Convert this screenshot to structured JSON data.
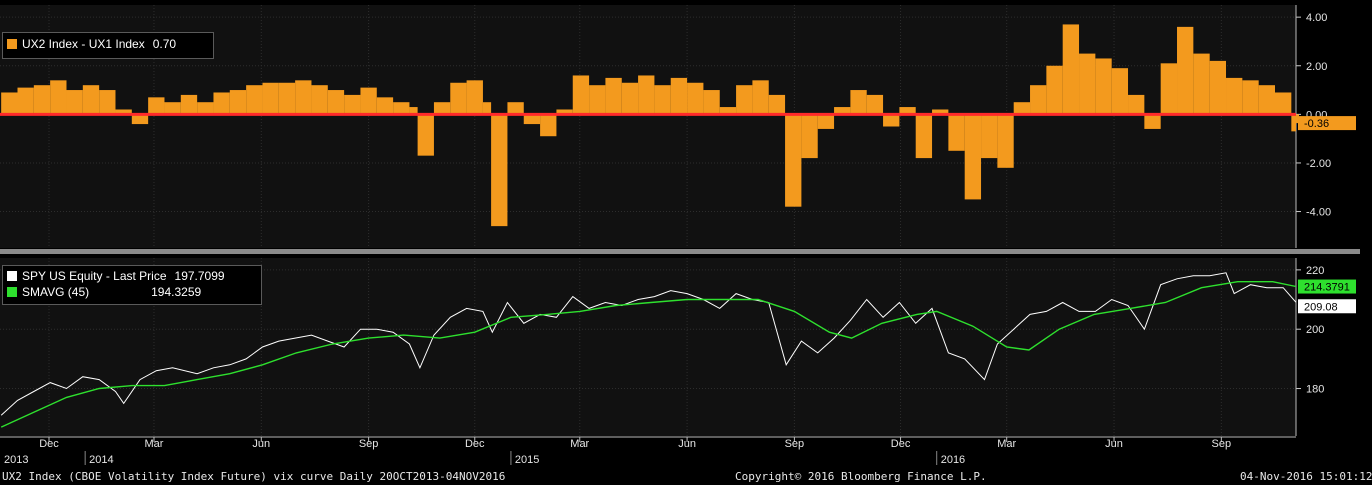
{
  "colors": {
    "bars": "#f39a1e",
    "zero_line": "#ff2a2a",
    "price": "#ffffff",
    "sma": "#2ee02e",
    "panel": "#111111",
    "grid": "#2d2d2d",
    "divider": "#8a8a8a"
  },
  "top_legend": {
    "label": "UX2 Index - UX1 Index",
    "value": "0.70"
  },
  "bottom_legend": {
    "price": {
      "label": "SPY US Equity - Last Price",
      "value": "197.7099"
    },
    "sma": {
      "label": "SMAVG (45)",
      "value": "194.3259"
    }
  },
  "badges": {
    "spread_last": "-0.36",
    "sma_last": "214.3791",
    "price_last": "209.08"
  },
  "footer": {
    "left": "UX2 Index (CBOE Volatility Index Future) vix curve  Daily 20OCT2013-04NOV2016",
    "center": "Copyright© 2016 Bloomberg Finance L.P.",
    "right": "04-Nov-2016 15:01:12"
  },
  "chart_data": [
    {
      "type": "bar",
      "series": [
        {
          "name": "UX2 Index - UX1 Index",
          "color": "#f39a1e",
          "points": [
            [
              "2013-10-21",
              0.9
            ],
            [
              "2013-11-04",
              1.1
            ],
            [
              "2013-11-18",
              1.2
            ],
            [
              "2013-12-02",
              1.4
            ],
            [
              "2013-12-16",
              1.0
            ],
            [
              "2013-12-30",
              1.2
            ],
            [
              "2014-01-13",
              1.0
            ],
            [
              "2014-01-27",
              0.2
            ],
            [
              "2014-02-10",
              -0.4
            ],
            [
              "2014-02-24",
              0.7
            ],
            [
              "2014-03-10",
              0.5
            ],
            [
              "2014-03-24",
              0.8
            ],
            [
              "2014-04-07",
              0.5
            ],
            [
              "2014-04-21",
              0.9
            ],
            [
              "2014-05-05",
              1.0
            ],
            [
              "2014-05-19",
              1.2
            ],
            [
              "2014-06-02",
              1.3
            ],
            [
              "2014-06-16",
              1.3
            ],
            [
              "2014-06-30",
              1.4
            ],
            [
              "2014-07-14",
              1.2
            ],
            [
              "2014-07-28",
              1.0
            ],
            [
              "2014-08-11",
              0.8
            ],
            [
              "2014-08-25",
              1.1
            ],
            [
              "2014-09-08",
              0.7
            ],
            [
              "2014-09-22",
              0.5
            ],
            [
              "2014-10-06",
              0.3
            ],
            [
              "2014-10-13",
              -1.7
            ],
            [
              "2014-10-27",
              0.5
            ],
            [
              "2014-11-10",
              1.3
            ],
            [
              "2014-11-24",
              1.4
            ],
            [
              "2014-12-08",
              0.5
            ],
            [
              "2014-12-15",
              -4.6
            ],
            [
              "2014-12-29",
              0.5
            ],
            [
              "2015-01-12",
              -0.4
            ],
            [
              "2015-01-26",
              -0.9
            ],
            [
              "2015-02-09",
              0.2
            ],
            [
              "2015-02-23",
              1.6
            ],
            [
              "2015-03-09",
              1.2
            ],
            [
              "2015-03-23",
              1.5
            ],
            [
              "2015-04-06",
              1.3
            ],
            [
              "2015-04-20",
              1.6
            ],
            [
              "2015-05-04",
              1.2
            ],
            [
              "2015-05-18",
              1.5
            ],
            [
              "2015-06-01",
              1.3
            ],
            [
              "2015-06-15",
              1.0
            ],
            [
              "2015-06-29",
              0.3
            ],
            [
              "2015-07-13",
              1.2
            ],
            [
              "2015-07-27",
              1.4
            ],
            [
              "2015-08-10",
              0.8
            ],
            [
              "2015-08-24",
              -3.8
            ],
            [
              "2015-09-07",
              -1.8
            ],
            [
              "2015-09-21",
              -0.6
            ],
            [
              "2015-10-05",
              0.3
            ],
            [
              "2015-10-19",
              1.0
            ],
            [
              "2015-11-02",
              0.8
            ],
            [
              "2015-11-16",
              -0.5
            ],
            [
              "2015-11-30",
              0.3
            ],
            [
              "2015-12-14",
              -1.8
            ],
            [
              "2015-12-28",
              0.2
            ],
            [
              "2016-01-11",
              -1.5
            ],
            [
              "2016-01-25",
              -3.5
            ],
            [
              "2016-02-08",
              -1.8
            ],
            [
              "2016-02-22",
              -2.2
            ],
            [
              "2016-03-07",
              0.5
            ],
            [
              "2016-03-21",
              1.2
            ],
            [
              "2016-04-04",
              2.0
            ],
            [
              "2016-04-18",
              3.7
            ],
            [
              "2016-05-02",
              2.5
            ],
            [
              "2016-05-16",
              2.3
            ],
            [
              "2016-05-30",
              1.9
            ],
            [
              "2016-06-13",
              0.8
            ],
            [
              "2016-06-27",
              -0.6
            ],
            [
              "2016-07-11",
              2.1
            ],
            [
              "2016-07-25",
              3.6
            ],
            [
              "2016-08-08",
              2.5
            ],
            [
              "2016-08-22",
              2.2
            ],
            [
              "2016-09-05",
              1.5
            ],
            [
              "2016-09-19",
              1.4
            ],
            [
              "2016-10-03",
              1.2
            ],
            [
              "2016-10-17",
              0.9
            ],
            [
              "2016-10-31",
              -0.7
            ],
            [
              "2016-11-04",
              -0.36
            ]
          ]
        }
      ],
      "x_start": "2013-10-20",
      "x_end": "2016-11-04",
      "ylim": [
        -5.5,
        4.5
      ],
      "yticks": [
        "4.00",
        "2.00",
        "0.00",
        "-2.00",
        "-4.00"
      ],
      "grid": true
    },
    {
      "type": "line",
      "series": [
        {
          "name": "SPY US Equity - Last Price",
          "color": "#ffffff",
          "points": [
            [
              "2013-10-21",
              171
            ],
            [
              "2013-11-04",
              176
            ],
            [
              "2013-11-18",
              179
            ],
            [
              "2013-12-02",
              182
            ],
            [
              "2013-12-16",
              180
            ],
            [
              "2013-12-30",
              184
            ],
            [
              "2014-01-13",
              183
            ],
            [
              "2014-01-27",
              179
            ],
            [
              "2014-02-03",
              175
            ],
            [
              "2014-02-17",
              183
            ],
            [
              "2014-03-03",
              186
            ],
            [
              "2014-03-17",
              187
            ],
            [
              "2014-04-07",
              185
            ],
            [
              "2014-04-21",
              187
            ],
            [
              "2014-05-05",
              188
            ],
            [
              "2014-05-19",
              190
            ],
            [
              "2014-06-02",
              194
            ],
            [
              "2014-06-16",
              196
            ],
            [
              "2014-06-30",
              197
            ],
            [
              "2014-07-14",
              198
            ],
            [
              "2014-07-28",
              196
            ],
            [
              "2014-08-11",
              194
            ],
            [
              "2014-08-25",
              200
            ],
            [
              "2014-09-08",
              200
            ],
            [
              "2014-09-22",
              199
            ],
            [
              "2014-10-06",
              195
            ],
            [
              "2014-10-15",
              187
            ],
            [
              "2014-10-27",
              198
            ],
            [
              "2014-11-10",
              204
            ],
            [
              "2014-11-24",
              207
            ],
            [
              "2014-12-08",
              206
            ],
            [
              "2014-12-16",
              199
            ],
            [
              "2014-12-29",
              209
            ],
            [
              "2015-01-12",
              202
            ],
            [
              "2015-01-26",
              205
            ],
            [
              "2015-02-09",
              204
            ],
            [
              "2015-02-23",
              211
            ],
            [
              "2015-03-09",
              207
            ],
            [
              "2015-03-23",
              209
            ],
            [
              "2015-04-06",
              208
            ],
            [
              "2015-04-20",
              210
            ],
            [
              "2015-05-04",
              211
            ],
            [
              "2015-05-18",
              213
            ],
            [
              "2015-06-01",
              212
            ],
            [
              "2015-06-15",
              210
            ],
            [
              "2015-06-29",
              207
            ],
            [
              "2015-07-13",
              212
            ],
            [
              "2015-07-27",
              210
            ],
            [
              "2015-08-10",
              209
            ],
            [
              "2015-08-25",
              188
            ],
            [
              "2015-09-07",
              196
            ],
            [
              "2015-09-21",
              192
            ],
            [
              "2015-10-05",
              197
            ],
            [
              "2015-10-19",
              203
            ],
            [
              "2015-11-02",
              210
            ],
            [
              "2015-11-16",
              204
            ],
            [
              "2015-11-30",
              209
            ],
            [
              "2015-12-14",
              202
            ],
            [
              "2015-12-28",
              207
            ],
            [
              "2016-01-11",
              192
            ],
            [
              "2016-01-25",
              190
            ],
            [
              "2016-02-11",
              183
            ],
            [
              "2016-02-22",
              195
            ],
            [
              "2016-03-07",
              200
            ],
            [
              "2016-03-21",
              205
            ],
            [
              "2016-04-04",
              206
            ],
            [
              "2016-04-18",
              209
            ],
            [
              "2016-05-02",
              206
            ],
            [
              "2016-05-16",
              206
            ],
            [
              "2016-05-30",
              210
            ],
            [
              "2016-06-13",
              208
            ],
            [
              "2016-06-27",
              200
            ],
            [
              "2016-07-11",
              215
            ],
            [
              "2016-07-25",
              217
            ],
            [
              "2016-08-08",
              218
            ],
            [
              "2016-08-22",
              218
            ],
            [
              "2016-09-05",
              219
            ],
            [
              "2016-09-12",
              212
            ],
            [
              "2016-09-26",
              215
            ],
            [
              "2016-10-10",
              214
            ],
            [
              "2016-10-24",
              214
            ],
            [
              "2016-11-04",
              209.08
            ]
          ]
        },
        {
          "name": "SMAVG (45)",
          "color": "#2ee02e",
          "points": [
            [
              "2013-10-21",
              167
            ],
            [
              "2013-11-18",
              172
            ],
            [
              "2013-12-16",
              177
            ],
            [
              "2014-01-13",
              180
            ],
            [
              "2014-02-10",
              181
            ],
            [
              "2014-03-10",
              181
            ],
            [
              "2014-04-07",
              183
            ],
            [
              "2014-05-05",
              185
            ],
            [
              "2014-06-02",
              188
            ],
            [
              "2014-07-01",
              192
            ],
            [
              "2014-08-01",
              195
            ],
            [
              "2014-09-01",
              197
            ],
            [
              "2014-10-01",
              198
            ],
            [
              "2014-11-01",
              197
            ],
            [
              "2014-12-01",
              199
            ],
            [
              "2015-01-01",
              204
            ],
            [
              "2015-02-01",
              205
            ],
            [
              "2015-03-01",
              206
            ],
            [
              "2015-04-01",
              208
            ],
            [
              "2015-05-01",
              209
            ],
            [
              "2015-06-01",
              210
            ],
            [
              "2015-07-01",
              210
            ],
            [
              "2015-08-01",
              210
            ],
            [
              "2015-09-01",
              206
            ],
            [
              "2015-10-01",
              199
            ],
            [
              "2015-10-20",
              197
            ],
            [
              "2015-11-15",
              202
            ],
            [
              "2015-12-15",
              205
            ],
            [
              "2016-01-01",
              206
            ],
            [
              "2016-02-01",
              201
            ],
            [
              "2016-03-01",
              194
            ],
            [
              "2016-03-20",
              193
            ],
            [
              "2016-04-15",
              200
            ],
            [
              "2016-05-15",
              205
            ],
            [
              "2016-06-15",
              207
            ],
            [
              "2016-07-15",
              209
            ],
            [
              "2016-08-15",
              214
            ],
            [
              "2016-09-15",
              216
            ],
            [
              "2016-10-15",
              216
            ],
            [
              "2016-11-04",
              214.38
            ]
          ]
        }
      ],
      "x_start": "2013-10-20",
      "x_end": "2016-11-04",
      "ylim": [
        164,
        224
      ],
      "yticks": [
        "220",
        "200",
        "180"
      ],
      "grid": true
    }
  ],
  "x_axis": {
    "months": [
      {
        "label": "Dec",
        "date": "2013-12-01"
      },
      {
        "label": "Mar",
        "date": "2014-03-01"
      },
      {
        "label": "Jun",
        "date": "2014-06-01"
      },
      {
        "label": "Sep",
        "date": "2014-09-01"
      },
      {
        "label": "Dec",
        "date": "2014-12-01"
      },
      {
        "label": "Mar",
        "date": "2015-03-01"
      },
      {
        "label": "Jun",
        "date": "2015-06-01"
      },
      {
        "label": "Sep",
        "date": "2015-09-01"
      },
      {
        "label": "Dec",
        "date": "2015-12-01"
      },
      {
        "label": "Mar",
        "date": "2016-03-01"
      },
      {
        "label": "Jun",
        "date": "2016-06-01"
      },
      {
        "label": "Sep",
        "date": "2016-09-01"
      }
    ],
    "years": [
      {
        "label": "2013",
        "date": "2013-10-20"
      },
      {
        "label": "2014",
        "date": "2014-01-01"
      },
      {
        "label": "2015",
        "date": "2015-01-01"
      },
      {
        "label": "2016",
        "date": "2016-01-01"
      }
    ]
  }
}
